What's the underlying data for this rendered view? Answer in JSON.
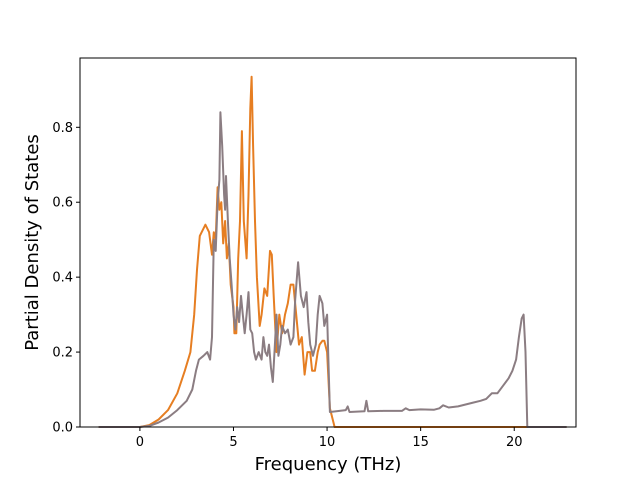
{
  "chart_data": {
    "type": "line",
    "title": "",
    "xlabel": "Frequency (THz)",
    "ylabel": "Partial Density of States",
    "xlim": [
      -3.2,
      23.3
    ],
    "ylim": [
      0.0,
      0.985
    ],
    "xticks": [
      0,
      5,
      10,
      15,
      20
    ],
    "xtick_labels": [
      "0",
      "5",
      "10",
      "15",
      "20"
    ],
    "yticks": [
      0.0,
      0.2,
      0.4,
      0.6,
      0.8
    ],
    "ytick_labels": [
      "0.0",
      "0.2",
      "0.4",
      "0.6",
      "0.8"
    ],
    "grid": false,
    "legend": "none",
    "series": [
      {
        "color": "#e67e22",
        "points": [
          [
            -2.2,
            0.0
          ],
          [
            0.0,
            0.0
          ],
          [
            0.5,
            0.005
          ],
          [
            1.0,
            0.02
          ],
          [
            1.5,
            0.045
          ],
          [
            2.0,
            0.09
          ],
          [
            2.4,
            0.15
          ],
          [
            2.7,
            0.2
          ],
          [
            2.9,
            0.3
          ],
          [
            3.05,
            0.42
          ],
          [
            3.2,
            0.51
          ],
          [
            3.5,
            0.54
          ],
          [
            3.7,
            0.52
          ],
          [
            3.85,
            0.46
          ],
          [
            3.95,
            0.52
          ],
          [
            4.05,
            0.5
          ],
          [
            4.15,
            0.64
          ],
          [
            4.25,
            0.58
          ],
          [
            4.35,
            0.6
          ],
          [
            4.45,
            0.49
          ],
          [
            4.55,
            0.55
          ],
          [
            4.65,
            0.45
          ],
          [
            4.75,
            0.49
          ],
          [
            4.85,
            0.38
          ],
          [
            5.0,
            0.32
          ],
          [
            5.05,
            0.25
          ],
          [
            5.15,
            0.25
          ],
          [
            5.25,
            0.45
          ],
          [
            5.35,
            0.55
          ],
          [
            5.45,
            0.79
          ],
          [
            5.55,
            0.55
          ],
          [
            5.7,
            0.45
          ],
          [
            5.8,
            0.62
          ],
          [
            5.9,
            0.85
          ],
          [
            5.97,
            0.935
          ],
          [
            6.05,
            0.75
          ],
          [
            6.15,
            0.55
          ],
          [
            6.25,
            0.4
          ],
          [
            6.4,
            0.27
          ],
          [
            6.5,
            0.3
          ],
          [
            6.65,
            0.37
          ],
          [
            6.8,
            0.35
          ],
          [
            6.95,
            0.47
          ],
          [
            7.05,
            0.46
          ],
          [
            7.15,
            0.35
          ],
          [
            7.3,
            0.2
          ],
          [
            7.45,
            0.3
          ],
          [
            7.6,
            0.25
          ],
          [
            7.75,
            0.3
          ],
          [
            7.9,
            0.33
          ],
          [
            8.05,
            0.38
          ],
          [
            8.2,
            0.38
          ],
          [
            8.35,
            0.3
          ],
          [
            8.5,
            0.22
          ],
          [
            8.65,
            0.24
          ],
          [
            8.8,
            0.14
          ],
          [
            8.95,
            0.2
          ],
          [
            9.1,
            0.2
          ],
          [
            9.2,
            0.15
          ],
          [
            9.35,
            0.15
          ],
          [
            9.5,
            0.2
          ],
          [
            9.6,
            0.22
          ],
          [
            9.75,
            0.23
          ],
          [
            9.85,
            0.23
          ],
          [
            10.0,
            0.2
          ],
          [
            10.15,
            0.05
          ],
          [
            10.4,
            0.0
          ],
          [
            11.0,
            0.0
          ],
          [
            15.0,
            0.0
          ],
          [
            20.0,
            0.0
          ],
          [
            22.8,
            0.0
          ]
        ]
      },
      {
        "color": "#8b7d82",
        "points": [
          [
            -2.2,
            0.0
          ],
          [
            0.0,
            0.0
          ],
          [
            0.5,
            0.003
          ],
          [
            1.0,
            0.012
          ],
          [
            1.5,
            0.025
          ],
          [
            2.0,
            0.045
          ],
          [
            2.5,
            0.07
          ],
          [
            2.8,
            0.1
          ],
          [
            3.0,
            0.15
          ],
          [
            3.15,
            0.18
          ],
          [
            3.4,
            0.19
          ],
          [
            3.6,
            0.2
          ],
          [
            3.75,
            0.18
          ],
          [
            3.85,
            0.24
          ],
          [
            3.95,
            0.5
          ],
          [
            4.05,
            0.47
          ],
          [
            4.15,
            0.6
          ],
          [
            4.25,
            0.66
          ],
          [
            4.3,
            0.84
          ],
          [
            4.4,
            0.75
          ],
          [
            4.5,
            0.62
          ],
          [
            4.55,
            0.58
          ],
          [
            4.6,
            0.67
          ],
          [
            4.7,
            0.55
          ],
          [
            4.8,
            0.45
          ],
          [
            4.9,
            0.38
          ],
          [
            5.0,
            0.3
          ],
          [
            5.1,
            0.26
          ],
          [
            5.2,
            0.32
          ],
          [
            5.3,
            0.28
          ],
          [
            5.4,
            0.35
          ],
          [
            5.5,
            0.3
          ],
          [
            5.6,
            0.25
          ],
          [
            5.7,
            0.3
          ],
          [
            5.8,
            0.36
          ],
          [
            5.9,
            0.26
          ],
          [
            6.0,
            0.25
          ],
          [
            6.1,
            0.2
          ],
          [
            6.2,
            0.18
          ],
          [
            6.35,
            0.2
          ],
          [
            6.5,
            0.18
          ],
          [
            6.6,
            0.24
          ],
          [
            6.7,
            0.2
          ],
          [
            6.8,
            0.19
          ],
          [
            6.9,
            0.22
          ],
          [
            7.0,
            0.16
          ],
          [
            7.1,
            0.12
          ],
          [
            7.2,
            0.21
          ],
          [
            7.3,
            0.3
          ],
          [
            7.4,
            0.19
          ],
          [
            7.5,
            0.22
          ],
          [
            7.6,
            0.27
          ],
          [
            7.75,
            0.25
          ],
          [
            7.9,
            0.26
          ],
          [
            8.05,
            0.22
          ],
          [
            8.2,
            0.24
          ],
          [
            8.3,
            0.34
          ],
          [
            8.45,
            0.44
          ],
          [
            8.6,
            0.35
          ],
          [
            8.75,
            0.32
          ],
          [
            8.9,
            0.36
          ],
          [
            9.0,
            0.28
          ],
          [
            9.1,
            0.22
          ],
          [
            9.25,
            0.19
          ],
          [
            9.4,
            0.22
          ],
          [
            9.5,
            0.3
          ],
          [
            9.6,
            0.35
          ],
          [
            9.75,
            0.33
          ],
          [
            9.85,
            0.27
          ],
          [
            10.0,
            0.3
          ],
          [
            10.15,
            0.04
          ],
          [
            10.5,
            0.042
          ],
          [
            11.0,
            0.045
          ],
          [
            11.1,
            0.055
          ],
          [
            11.2,
            0.04
          ],
          [
            12.0,
            0.042
          ],
          [
            12.1,
            0.07
          ],
          [
            12.2,
            0.042
          ],
          [
            13.0,
            0.043
          ],
          [
            14.0,
            0.043
          ],
          [
            14.2,
            0.05
          ],
          [
            14.4,
            0.045
          ],
          [
            15.0,
            0.047
          ],
          [
            15.7,
            0.046
          ],
          [
            16.0,
            0.05
          ],
          [
            16.2,
            0.058
          ],
          [
            16.5,
            0.052
          ],
          [
            17.0,
            0.055
          ],
          [
            17.4,
            0.06
          ],
          [
            17.8,
            0.065
          ],
          [
            18.2,
            0.07
          ],
          [
            18.5,
            0.075
          ],
          [
            18.8,
            0.09
          ],
          [
            19.1,
            0.09
          ],
          [
            19.4,
            0.11
          ],
          [
            19.7,
            0.13
          ],
          [
            19.9,
            0.15
          ],
          [
            20.1,
            0.18
          ],
          [
            20.25,
            0.24
          ],
          [
            20.4,
            0.29
          ],
          [
            20.5,
            0.3
          ],
          [
            20.6,
            0.2
          ],
          [
            20.7,
            0.0
          ],
          [
            21.0,
            0.0
          ],
          [
            22.8,
            0.0
          ]
        ]
      }
    ]
  }
}
